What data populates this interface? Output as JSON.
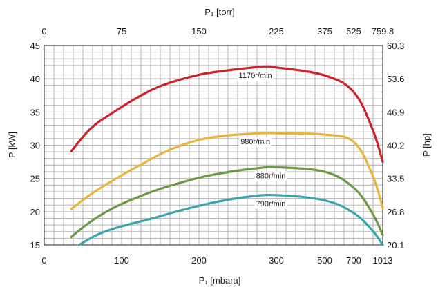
{
  "chart_data": {
    "type": "line",
    "xlabel": "P₁ [mbara]",
    "x2label": "P₁ [torr]",
    "ylabel": "P [kW]",
    "y2label": "P [hp]",
    "ylim": [
      15,
      45
    ],
    "yticks": [
      "15",
      "20",
      "25",
      "30",
      "35",
      "40",
      "45"
    ],
    "y2ticks": [
      "20.1",
      "26.8",
      "33.5",
      "40.2",
      "46.9",
      "53.6",
      "60.3"
    ],
    "xticks": [
      "0",
      "100",
      "200",
      "300",
      "500",
      "700",
      "1013"
    ],
    "x2ticks": [
      "0",
      "75",
      "150",
      "225",
      "375",
      "525",
      "759.8"
    ],
    "grid": true,
    "series": [
      {
        "name": "1170r/min",
        "color": "#cc2229",
        "x": [
          35,
          60,
          90,
          130,
          160,
          200,
          240,
          280,
          300,
          500,
          700,
          900,
          1013
        ],
        "y": [
          29.1,
          32.5,
          35,
          37.8,
          39.3,
          40.6,
          41.3,
          41.8,
          41.7,
          40.5,
          38,
          32.5,
          27.5
        ]
      },
      {
        "name": "980r/min",
        "color": "#e8b53a",
        "x": [
          35,
          60,
          90,
          130,
          160,
          200,
          240,
          280,
          300,
          500,
          700,
          900,
          1013
        ],
        "y": [
          20.4,
          22.6,
          24.8,
          27.4,
          29.2,
          30.8,
          31.5,
          31.8,
          31.8,
          31.6,
          30.5,
          25.6,
          20.6
        ]
      },
      {
        "name": "880r/min",
        "color": "#6a9a45",
        "x": [
          35,
          60,
          90,
          130,
          160,
          200,
          240,
          280,
          300,
          500,
          700,
          900,
          1013
        ],
        "y": [
          16.2,
          18.5,
          20.6,
          22.6,
          23.8,
          25.1,
          26,
          26.6,
          26.7,
          26,
          23.6,
          19.8,
          16.5
        ]
      },
      {
        "name": "790r/min",
        "color": "#3aa5a8",
        "x": [
          45,
          70,
          100,
          140,
          180,
          220,
          260,
          300,
          500,
          700,
          900,
          1013
        ],
        "y": [
          15,
          16.6,
          17.8,
          19,
          20.3,
          21.4,
          22.2,
          22.5,
          21.7,
          19.8,
          17.2,
          15
        ]
      }
    ]
  }
}
